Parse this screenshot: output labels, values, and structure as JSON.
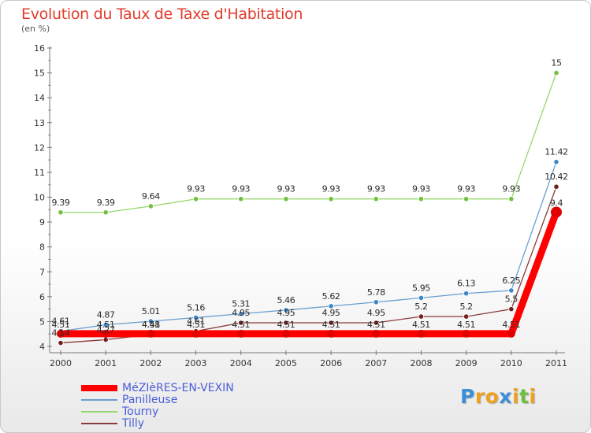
{
  "title": "Evolution du Taux de Taxe d'Habitation",
  "subtitle": "(en %)",
  "logo": {
    "letters": [
      "P",
      "r",
      "o",
      "x",
      "i",
      "t",
      "i"
    ],
    "colors": [
      "#3b8fd8",
      "#f0a020",
      "#f0a020",
      "#3b8fd8",
      "#f0a020",
      "#6fbf3f",
      "#f0a020"
    ]
  },
  "chart_data": {
    "type": "line",
    "x": [
      "2000",
      "2001",
      "2002",
      "2003",
      "2004",
      "2005",
      "2006",
      "2007",
      "2008",
      "2009",
      "2010",
      "2011"
    ],
    "ylim": [
      4,
      16
    ],
    "yticks": [
      "4",
      "5",
      "6",
      "7",
      "8",
      "9",
      "10",
      "11",
      "12",
      "13",
      "14",
      "15",
      "16"
    ],
    "grid": false,
    "legend_position": "bottom-left",
    "series": [
      {
        "name": "MéZIèRES-EN-VEXIN",
        "color": "#ff0000",
        "marker_color": "#e00000",
        "line_width": 9,
        "values": [
          4.51,
          4.51,
          4.51,
          4.51,
          4.51,
          4.51,
          4.51,
          4.51,
          4.51,
          4.51,
          4.51,
          9.4
        ],
        "labels": [
          "4.51",
          "4.51",
          "4.51",
          "4.51",
          "4.51",
          "4.51",
          "4.51",
          "4.51",
          "4.51",
          "4.51",
          "4.51",
          "9.4"
        ]
      },
      {
        "name": "Panilleuse",
        "color": "#6a9fd0",
        "marker_color": "#3e86c8",
        "line_width": 1.3,
        "values": [
          4.61,
          4.87,
          5.01,
          5.16,
          5.31,
          5.46,
          5.62,
          5.78,
          5.95,
          6.13,
          6.25,
          11.42
        ],
        "labels": [
          "4.61",
          "4.87",
          "5.01",
          "5.16",
          "5.31",
          "5.46",
          "5.62",
          "5.78",
          "5.95",
          "6.13",
          "6.25",
          "11.42"
        ]
      },
      {
        "name": "Tourny",
        "color": "#96d66c",
        "marker_color": "#72c040",
        "line_width": 1.3,
        "values": [
          9.39,
          9.39,
          9.64,
          9.93,
          9.93,
          9.93,
          9.93,
          9.93,
          9.93,
          9.93,
          9.93,
          15
        ],
        "labels": [
          "9.39",
          "9.39",
          "9.64",
          "9.93",
          "9.93",
          "9.93",
          "9.93",
          "9.93",
          "9.93",
          "9.93",
          "9.93",
          "15"
        ]
      },
      {
        "name": "Tilly",
        "color": "#8a3a3a",
        "marker_color": "#701e1e",
        "line_width": 1.3,
        "values": [
          4.14,
          4.27,
          4.48,
          4.61,
          4.95,
          4.95,
          4.95,
          4.95,
          5.2,
          5.2,
          5.5,
          10.42
        ],
        "labels": [
          "4.14",
          "4.27",
          "4.48",
          "4.61",
          "4.95",
          "4.95",
          "4.95",
          "4.95",
          "5.2",
          "5.2",
          "5.5",
          "10.42"
        ]
      }
    ]
  }
}
